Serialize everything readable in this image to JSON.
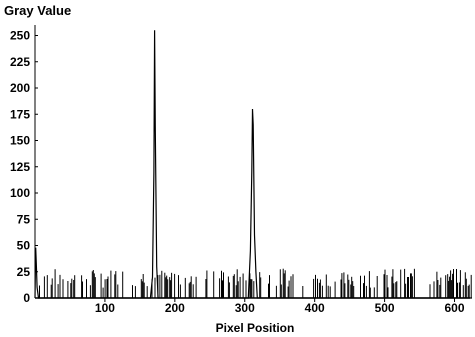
{
  "chart_data": {
    "type": "line",
    "title": "",
    "ylabel": "Gray Value",
    "xlabel": "Pixel Position",
    "xlim": [
      0,
      625
    ],
    "ylim": [
      0,
      260
    ],
    "x_ticks": [
      100,
      200,
      300,
      400,
      500,
      600
    ],
    "y_ticks": [
      0,
      25,
      50,
      75,
      100,
      125,
      150,
      175,
      200,
      225,
      250
    ],
    "grid": false,
    "line_color": "#000000",
    "series": [
      {
        "points": [
          [
            0,
            0
          ],
          [
            1,
            48
          ],
          [
            2,
            30
          ],
          [
            3,
            10
          ],
          [
            5,
            0
          ],
          [
            165,
            0
          ],
          [
            168,
            20
          ],
          [
            170,
            120
          ],
          [
            171,
            255
          ],
          [
            172,
            160
          ],
          [
            174,
            30
          ],
          [
            176,
            0
          ],
          [
            305,
            0
          ],
          [
            308,
            45
          ],
          [
            310,
            120
          ],
          [
            311,
            180
          ],
          [
            312,
            165
          ],
          [
            314,
            60
          ],
          [
            316,
            25
          ],
          [
            318,
            0
          ],
          [
            625,
            0
          ]
        ],
        "noise": {
          "x_start": 5,
          "x_end": 625,
          "max_value": 28,
          "note": "dense low-level spikes up to ~25 across the profile"
        }
      }
    ]
  }
}
